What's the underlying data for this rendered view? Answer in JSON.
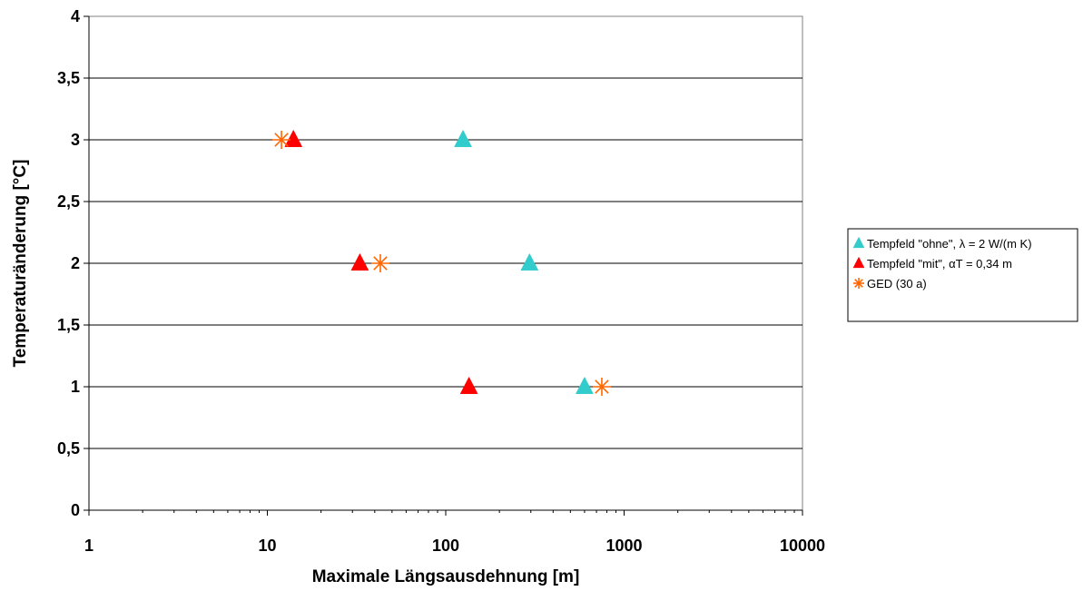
{
  "chart_data": {
    "type": "scatter",
    "title": "",
    "xlabel": "Maximale Längsausdehnung [m]",
    "ylabel": "Temperaturänderung [°C]",
    "xscale": "log",
    "xlim": [
      1,
      10000
    ],
    "ylim": [
      0,
      4
    ],
    "x_ticks": [
      1,
      10,
      100,
      1000,
      10000
    ],
    "x_tick_labels": [
      "1",
      "10",
      "100",
      "1000",
      "10000"
    ],
    "y_ticks": [
      0,
      0.5,
      1,
      1.5,
      2,
      2.5,
      3,
      3.5,
      4
    ],
    "y_tick_labels": [
      "0",
      "0,5",
      "1",
      "1,5",
      "2",
      "2,5",
      "3",
      "3,5",
      "4"
    ],
    "grid": "horizontal major gridlines",
    "legend_position": "right",
    "series": [
      {
        "name": "Tempfeld \"ohne\", λ = 2 W/(m K)",
        "marker": "triangle",
        "color": "#33CCCC",
        "points": [
          {
            "x": 125,
            "y": 3
          },
          {
            "x": 295,
            "y": 2
          },
          {
            "x": 600,
            "y": 1
          }
        ]
      },
      {
        "name": "Tempfeld \"mit\", αT = 0,34 m",
        "marker": "triangle",
        "color": "#FF0000",
        "points": [
          {
            "x": 14,
            "y": 3
          },
          {
            "x": 33,
            "y": 2
          },
          {
            "x": 135,
            "y": 1
          }
        ]
      },
      {
        "name": "GED (30 a)",
        "marker": "asterisk",
        "color": "#FF6600",
        "points": [
          {
            "x": 12,
            "y": 3
          },
          {
            "x": 43,
            "y": 2
          },
          {
            "x": 750,
            "y": 1
          }
        ]
      }
    ]
  }
}
